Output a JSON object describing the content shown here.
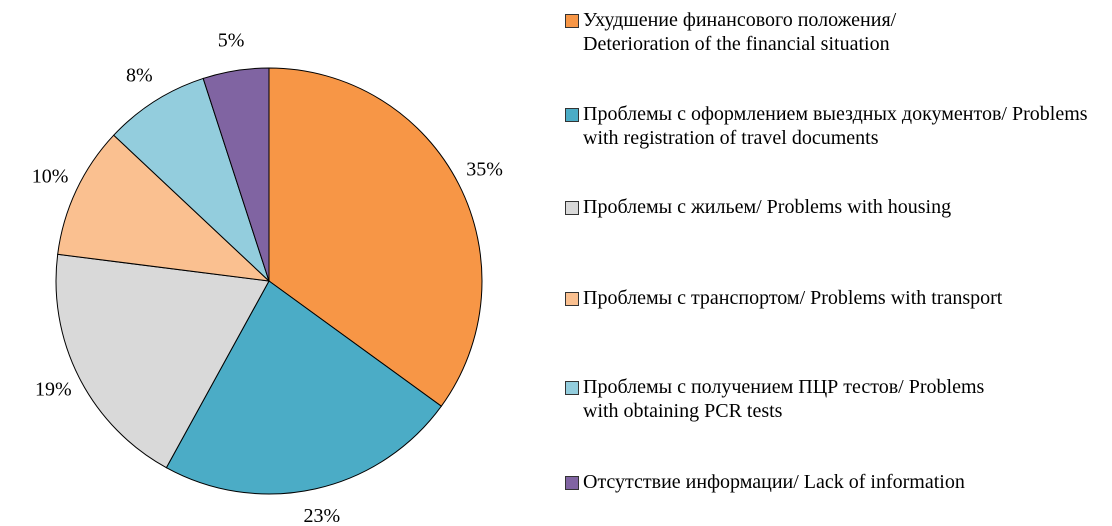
{
  "chart_data": {
    "type": "pie",
    "categories": [
      "Ухудшение финансового положения/ Deterioration of the financial situation",
      "Проблемы с оформлением выездных документов/ Problems with registration of travel documents",
      "Проблемы с жильем/ Problems with housing",
      "Проблемы с транспортом/ Problems with transport",
      "Проблемы с получением ПЦР тестов/ Problems with obtaining PCR tests",
      "Отсутствие информации/ Lack of information"
    ],
    "values": [
      35,
      23,
      19,
      10,
      8,
      5
    ],
    "value_labels": [
      "35%",
      "23%",
      "19%",
      "10%",
      "8%",
      "5%"
    ],
    "colors": [
      "#F79646",
      "#4BACC6",
      "#D9D9D9",
      "#FAC090",
      "#93CDDD",
      "#8064A2"
    ],
    "legend": "right"
  }
}
